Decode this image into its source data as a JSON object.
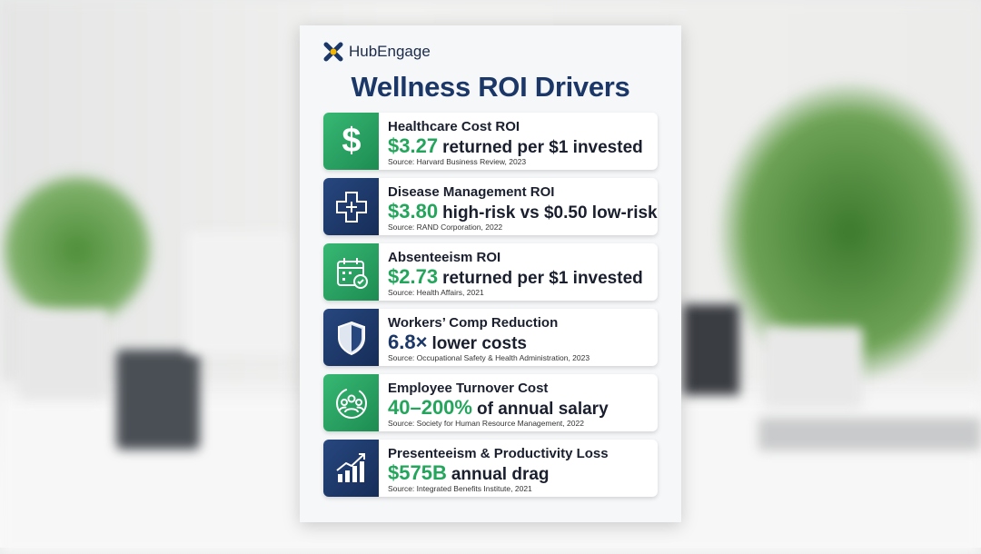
{
  "brand": "HubEngage",
  "title": "Wellness ROI Drivers",
  "items": [
    {
      "title": "Healthcare Cost ROI",
      "highlight": "$3.27",
      "rest": "returned per $1 invested",
      "source": "Source: Harvard Business Review, 2023",
      "icon_color": "green",
      "highlight_color": "#23a65c"
    },
    {
      "title": "Disease Management ROI",
      "highlight": "$3.80",
      "rest": "high-risk vs $0.50 low-risk",
      "source": "Source: RAND Corporation, 2022",
      "icon_color": "navy",
      "highlight_color": "#23a65c"
    },
    {
      "title": "Absenteeism ROI",
      "highlight": "$2.73",
      "rest": "returned per $1 invested",
      "source": "Source: Health Affairs, 2021",
      "icon_color": "green",
      "highlight_color": "#23a65c"
    },
    {
      "title": "Workers’ Comp Reduction",
      "highlight": "6.8×",
      "rest": "lower costs",
      "source": "Source: Occupational Safety & Health Administration, 2023",
      "icon_color": "navy",
      "highlight_color": "#1b3768"
    },
    {
      "title": "Employee Turnover Cost",
      "highlight": "40–200%",
      "rest": "of annual salary",
      "source": "Source: Society for Human Resource Management, 2022",
      "icon_color": "green",
      "highlight_color": "#23a65c"
    },
    {
      "title": "Presenteeism & Productivity Loss",
      "highlight": "$575B",
      "rest": "annual drag",
      "source": "Source: Integrated Benefits Institute, 2021",
      "icon_color": "navy",
      "highlight_color": "#23a65c"
    }
  ]
}
